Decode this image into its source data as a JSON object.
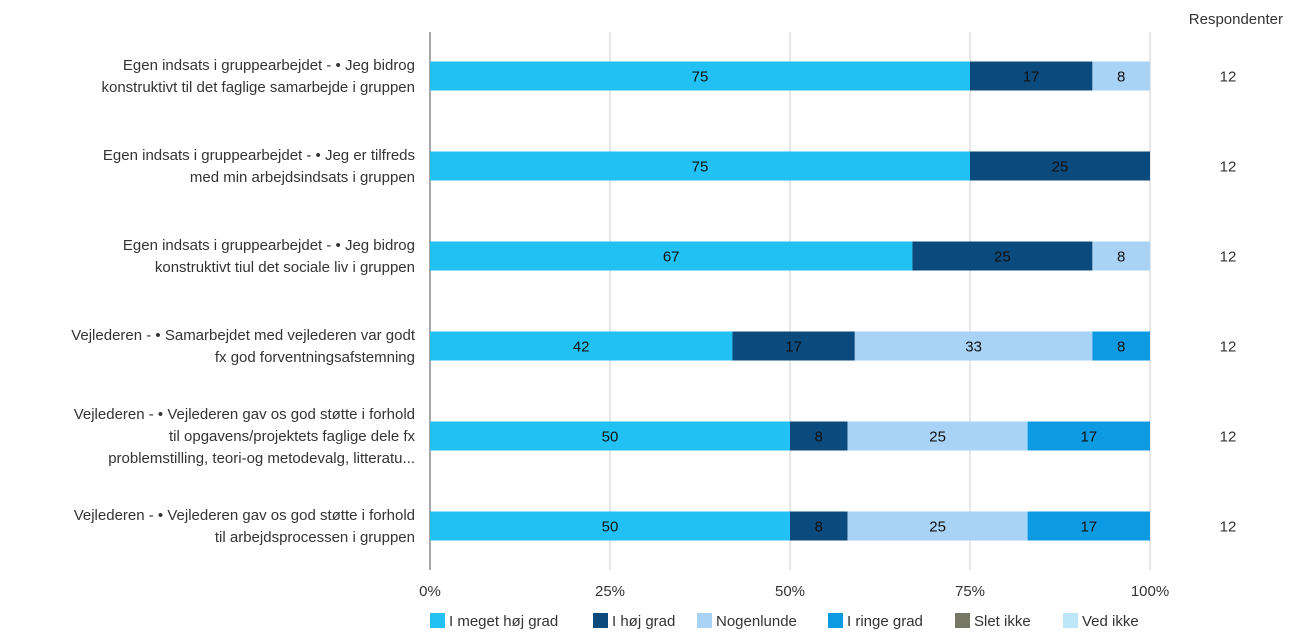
{
  "chart_data": {
    "type": "bar",
    "orientation": "horizontal",
    "stacked": true,
    "percent_stacked": true,
    "categories": [
      [
        "Egen indsats i gruppearbejdet - • Jeg bidrog",
        "konstruktivt til det faglige samarbejde i gruppen"
      ],
      [
        "Egen indsats i gruppearbejdet - • Jeg er tilfreds",
        "med min arbejdsindsats i gruppen"
      ],
      [
        "Egen indsats i gruppearbejdet - • Jeg bidrog",
        "konstruktivt tiul det sociale liv i gruppen"
      ],
      [
        "Vejlederen - • Samarbejdet med vejlederen var godt",
        "fx god forventningsafstemning"
      ],
      [
        "Vejlederen - • Vejlederen gav os god støtte i forhold",
        "til opgavens/projektets faglige dele fx",
        "problemstilling, teori-og metodevalg, litteratu..."
      ],
      [
        "Vejlederen - • Vejlederen gav os god støtte i forhold",
        "til arbejdsprocessen i gruppen"
      ]
    ],
    "series": [
      {
        "name": "I meget høj grad",
        "color": "#21c2f3",
        "values": [
          75,
          75,
          67,
          42,
          50,
          50
        ]
      },
      {
        "name": "I høj grad",
        "color": "#0b4a7c",
        "values": [
          17,
          25,
          25,
          17,
          8,
          8
        ]
      },
      {
        "name": "Nogenlunde",
        "color": "#a8d3f6",
        "values": [
          8,
          0,
          8,
          33,
          25,
          25
        ]
      },
      {
        "name": "I ringe grad",
        "color": "#0c9be3",
        "values": [
          0,
          0,
          0,
          8,
          17,
          17
        ]
      },
      {
        "name": "Slet ikke",
        "color": "#777766",
        "values": [
          0,
          0,
          0,
          0,
          0,
          0
        ]
      },
      {
        "name": "Ved ikke",
        "color": "#bde6f9",
        "values": [
          0,
          0,
          0,
          0,
          0,
          0
        ]
      }
    ],
    "xlim": [
      0,
      100
    ],
    "xticks": [
      "0%",
      "25%",
      "50%",
      "75%",
      "100%"
    ],
    "respondents_header": "Respondenter",
    "respondents": [
      "12",
      "12",
      "12",
      "12",
      "12",
      "12"
    ],
    "grid": true,
    "legend_position": "bottom"
  }
}
